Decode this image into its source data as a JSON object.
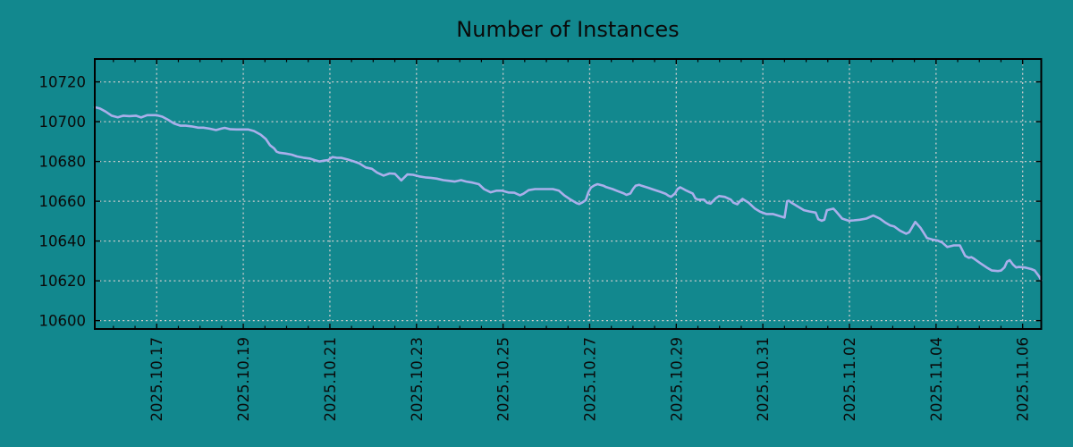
{
  "colors": {
    "background": "#12888E",
    "line": "#AAAFEB",
    "grid": "#CDCDCD",
    "axis": "#000000",
    "text": "#0A0A0A"
  },
  "chart_data": {
    "type": "line",
    "title": "Number of Instances",
    "xlabel": "",
    "ylabel": "",
    "grid": true,
    "legend": false,
    "x_axis": {
      "unit": "date",
      "range": [
        0,
        21.86
      ],
      "tick_positions": [
        1.43,
        3.43,
        5.43,
        7.43,
        9.43,
        11.43,
        13.43,
        15.43,
        17.43,
        19.43,
        21.43
      ],
      "tick_labels": [
        "2025.10.17",
        "2025.10.19",
        "2025.10.21",
        "2025.10.23",
        "2025.10.25",
        "2025.10.27",
        "2025.10.29",
        "2025.10.31",
        "2025.11.02",
        "2025.11.04",
        "2025.11.06"
      ],
      "minor_tick_interval": 0.5,
      "minor_tick_start": 0.43
    },
    "y_axis": {
      "range": [
        10595.8,
        10731.5
      ],
      "ticks": [
        10600,
        10620,
        10640,
        10660,
        10680,
        10700,
        10720
      ]
    },
    "series": [
      {
        "name": "instances",
        "color": "#AAAFEB",
        "points": [
          [
            0.0,
            10707.3
          ],
          [
            0.12,
            10706.6
          ],
          [
            0.25,
            10705.1
          ],
          [
            0.39,
            10703.0
          ],
          [
            0.53,
            10702.2
          ],
          [
            0.66,
            10703.0
          ],
          [
            0.8,
            10702.8
          ],
          [
            0.95,
            10703.0
          ],
          [
            1.07,
            10702.1
          ],
          [
            1.21,
            10703.3
          ],
          [
            1.42,
            10703.3
          ],
          [
            1.56,
            10702.5
          ],
          [
            1.69,
            10701.0
          ],
          [
            1.83,
            10699.1
          ],
          [
            1.98,
            10698.0
          ],
          [
            2.1,
            10698.0
          ],
          [
            2.24,
            10697.6
          ],
          [
            2.39,
            10697.0
          ],
          [
            2.51,
            10697.0
          ],
          [
            2.65,
            10696.5
          ],
          [
            2.8,
            10695.8
          ],
          [
            2.92,
            10696.5
          ],
          [
            3.0,
            10696.9
          ],
          [
            3.13,
            10696.2
          ],
          [
            3.27,
            10696.1
          ],
          [
            3.42,
            10696.1
          ],
          [
            3.54,
            10696.1
          ],
          [
            3.68,
            10695.3
          ],
          [
            3.83,
            10693.5
          ],
          [
            3.95,
            10691.3
          ],
          [
            4.05,
            10688.1
          ],
          [
            4.14,
            10686.6
          ],
          [
            4.2,
            10684.9
          ],
          [
            4.26,
            10684.4
          ],
          [
            4.4,
            10684.0
          ],
          [
            4.55,
            10683.4
          ],
          [
            4.67,
            10682.5
          ],
          [
            4.82,
            10681.9
          ],
          [
            4.96,
            10681.5
          ],
          [
            5.08,
            10680.7
          ],
          [
            5.19,
            10680.0
          ],
          [
            5.29,
            10680.4
          ],
          [
            5.39,
            10680.7
          ],
          [
            5.49,
            10682.2
          ],
          [
            5.58,
            10681.9
          ],
          [
            5.7,
            10681.8
          ],
          [
            5.84,
            10681.0
          ],
          [
            5.99,
            10680.0
          ],
          [
            6.11,
            10679.0
          ],
          [
            6.26,
            10677.0
          ],
          [
            6.4,
            10676.3
          ],
          [
            6.52,
            10674.4
          ],
          [
            6.67,
            10672.9
          ],
          [
            6.81,
            10674.0
          ],
          [
            6.93,
            10673.8
          ],
          [
            7.08,
            10670.5
          ],
          [
            7.22,
            10673.5
          ],
          [
            7.35,
            10673.3
          ],
          [
            7.49,
            10672.5
          ],
          [
            7.63,
            10672.0
          ],
          [
            7.76,
            10671.8
          ],
          [
            7.9,
            10671.4
          ],
          [
            8.05,
            10670.6
          ],
          [
            8.17,
            10670.3
          ],
          [
            8.31,
            10669.9
          ],
          [
            8.46,
            10670.6
          ],
          [
            8.58,
            10669.9
          ],
          [
            8.72,
            10669.4
          ],
          [
            8.87,
            10668.6
          ],
          [
            8.99,
            10666.1
          ],
          [
            9.14,
            10664.5
          ],
          [
            9.28,
            10665.3
          ],
          [
            9.4,
            10665.3
          ],
          [
            9.55,
            10664.4
          ],
          [
            9.69,
            10664.3
          ],
          [
            9.82,
            10663.0
          ],
          [
            9.9,
            10663.8
          ],
          [
            10.02,
            10665.6
          ],
          [
            10.17,
            10666.1
          ],
          [
            10.31,
            10666.1
          ],
          [
            10.43,
            10666.1
          ],
          [
            10.58,
            10666.1
          ],
          [
            10.72,
            10665.3
          ],
          [
            10.84,
            10663.0
          ],
          [
            10.99,
            10660.8
          ],
          [
            11.13,
            10659.0
          ],
          [
            11.19,
            10658.6
          ],
          [
            11.26,
            10659.4
          ],
          [
            11.34,
            10660.6
          ],
          [
            11.4,
            10664.5
          ],
          [
            11.46,
            10666.9
          ],
          [
            11.54,
            10668.0
          ],
          [
            11.61,
            10668.6
          ],
          [
            11.75,
            10667.8
          ],
          [
            11.81,
            10667.1
          ],
          [
            11.96,
            10666.1
          ],
          [
            12.08,
            10665.1
          ],
          [
            12.22,
            10663.9
          ],
          [
            12.28,
            10663.2
          ],
          [
            12.37,
            10663.9
          ],
          [
            12.43,
            10666.1
          ],
          [
            12.49,
            10667.8
          ],
          [
            12.57,
            10668.3
          ],
          [
            12.63,
            10667.8
          ],
          [
            12.78,
            10666.8
          ],
          [
            12.9,
            10665.9
          ],
          [
            13.05,
            10664.8
          ],
          [
            13.19,
            10663.7
          ],
          [
            13.25,
            10662.8
          ],
          [
            13.31,
            10662.2
          ],
          [
            13.4,
            10663.9
          ],
          [
            13.46,
            10666.1
          ],
          [
            13.52,
            10667.0
          ],
          [
            13.6,
            10666.1
          ],
          [
            13.66,
            10665.4
          ],
          [
            13.72,
            10664.8
          ],
          [
            13.81,
            10663.9
          ],
          [
            13.87,
            10661.5
          ],
          [
            13.93,
            10660.8
          ],
          [
            14.07,
            10660.8
          ],
          [
            14.14,
            10659.3
          ],
          [
            14.22,
            10658.8
          ],
          [
            14.34,
            10661.5
          ],
          [
            14.42,
            10662.6
          ],
          [
            14.55,
            10662.2
          ],
          [
            14.69,
            10660.8
          ],
          [
            14.75,
            10659.3
          ],
          [
            14.84,
            10658.5
          ],
          [
            14.9,
            10660.0
          ],
          [
            14.96,
            10661.2
          ],
          [
            15.1,
            10659.3
          ],
          [
            15.25,
            10656.3
          ],
          [
            15.37,
            10654.7
          ],
          [
            15.51,
            10653.6
          ],
          [
            15.66,
            10653.6
          ],
          [
            15.78,
            10652.8
          ],
          [
            15.93,
            10651.8
          ],
          [
            15.99,
            10660.0
          ],
          [
            16.03,
            10660.3
          ],
          [
            16.09,
            10659.3
          ],
          [
            16.24,
            10657.3
          ],
          [
            16.38,
            10655.5
          ],
          [
            16.5,
            10654.9
          ],
          [
            16.65,
            10654.3
          ],
          [
            16.71,
            10651.0
          ],
          [
            16.79,
            10650.2
          ],
          [
            16.85,
            10650.7
          ],
          [
            16.91,
            10655.5
          ],
          [
            17.06,
            10656.3
          ],
          [
            17.12,
            10654.9
          ],
          [
            17.26,
            10651.3
          ],
          [
            17.41,
            10650.2
          ],
          [
            17.53,
            10650.4
          ],
          [
            17.67,
            10650.7
          ],
          [
            17.82,
            10651.3
          ],
          [
            17.98,
            10652.8
          ],
          [
            18.13,
            10651.3
          ],
          [
            18.25,
            10649.4
          ],
          [
            18.37,
            10647.9
          ],
          [
            18.46,
            10647.4
          ],
          [
            18.6,
            10645.2
          ],
          [
            18.74,
            10643.7
          ],
          [
            18.81,
            10644.4
          ],
          [
            18.95,
            10649.6
          ],
          [
            19.07,
            10646.7
          ],
          [
            19.22,
            10641.5
          ],
          [
            19.36,
            10640.7
          ],
          [
            19.46,
            10640.3
          ],
          [
            19.57,
            10639.3
          ],
          [
            19.69,
            10637.0
          ],
          [
            19.84,
            10637.8
          ],
          [
            19.98,
            10637.8
          ],
          [
            20.1,
            10632.6
          ],
          [
            20.18,
            10631.6
          ],
          [
            20.25,
            10631.9
          ],
          [
            20.31,
            10631.1
          ],
          [
            20.45,
            10628.9
          ],
          [
            20.6,
            10626.7
          ],
          [
            20.72,
            10625.2
          ],
          [
            20.86,
            10624.9
          ],
          [
            20.93,
            10625.2
          ],
          [
            21.01,
            10626.7
          ],
          [
            21.07,
            10629.6
          ],
          [
            21.13,
            10630.4
          ],
          [
            21.21,
            10628.1
          ],
          [
            21.28,
            10626.7
          ],
          [
            21.34,
            10627.0
          ],
          [
            21.48,
            10626.7
          ],
          [
            21.54,
            10626.4
          ],
          [
            21.63,
            10625.9
          ],
          [
            21.71,
            10625.2
          ],
          [
            21.81,
            10622.2
          ],
          [
            21.86,
            10620.2
          ]
        ]
      }
    ]
  }
}
